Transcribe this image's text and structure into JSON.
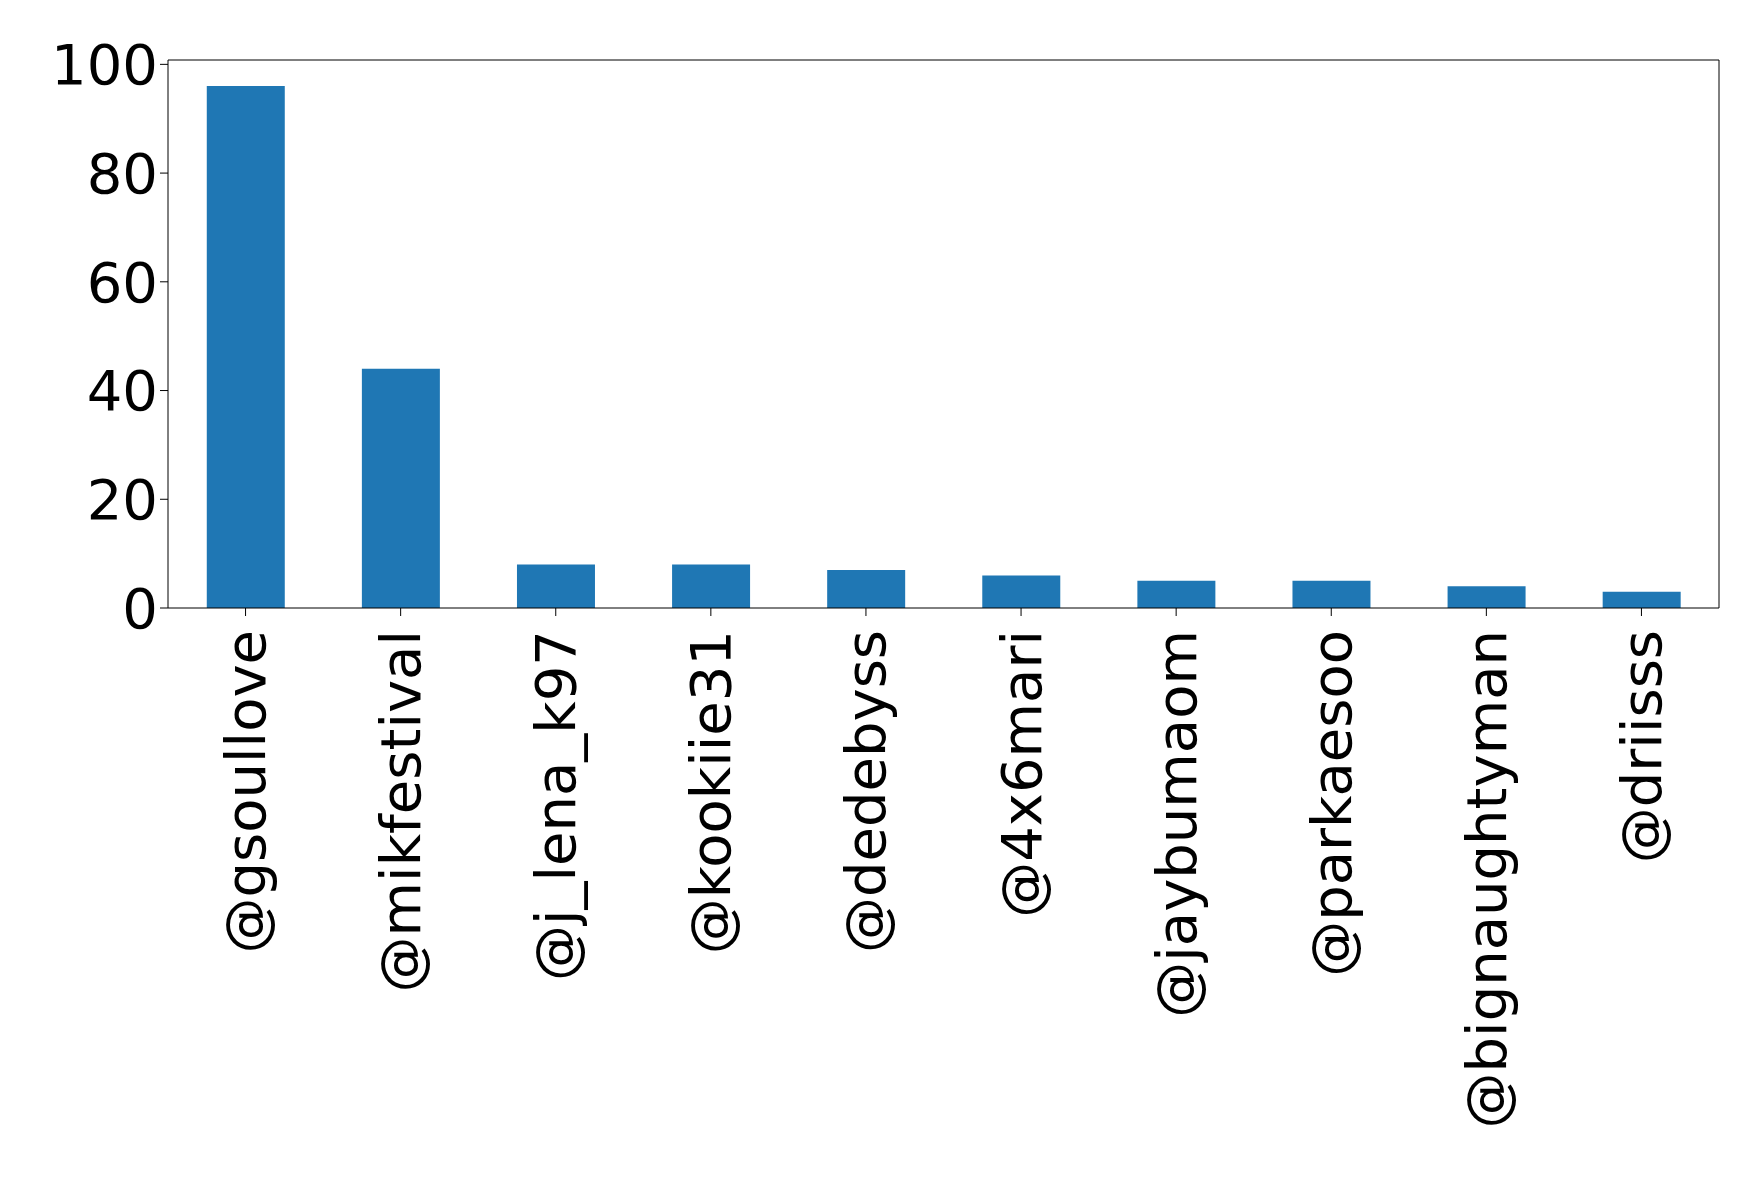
{
  "chart_data": {
    "type": "bar",
    "categories": [
      "@gsoullove",
      "@mikfestival",
      "@j_lena_k97",
      "@kookiie31",
      "@dedebyss",
      "@4x6mari",
      "@jaybumaom",
      "@parkaesoo",
      "@bignaughtyman",
      "@driisss"
    ],
    "values": [
      96,
      44,
      8,
      8,
      7,
      6,
      5,
      5,
      4,
      3
    ],
    "color": "#1f77b4",
    "ylim": [
      0,
      100.8
    ],
    "yticks": [
      0,
      20,
      40,
      60,
      80,
      100
    ],
    "grid": false,
    "legend": false
  }
}
